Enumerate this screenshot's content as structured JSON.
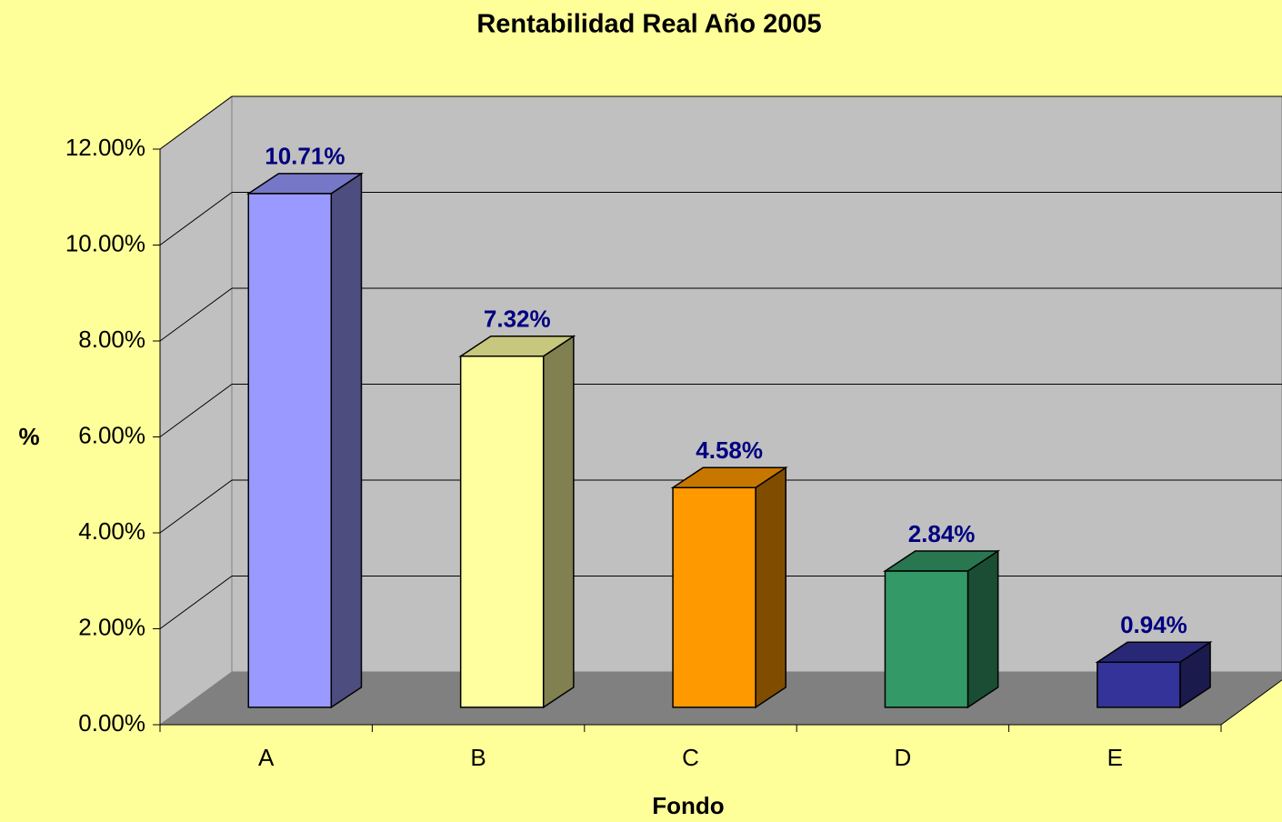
{
  "chart_data": {
    "type": "bar3d",
    "title": "Rentabilidad Real Año 2005",
    "x_label": "Fondo",
    "y_label": "%",
    "categories": [
      "A",
      "B",
      "C",
      "D",
      "E"
    ],
    "values": [
      10.71,
      7.32,
      4.58,
      2.84,
      0.94
    ],
    "value_labels": [
      "10.71%",
      "7.32%",
      "4.58%",
      "2.84%",
      "0.94%"
    ],
    "colors": [
      "#9999ff",
      "#ffffa0",
      "#ff9900",
      "#339966",
      "#333399"
    ],
    "ylim": [
      0,
      12
    ],
    "yticks": [
      {
        "value": 0,
        "label": "0.00%"
      },
      {
        "value": 2,
        "label": "2.00%"
      },
      {
        "value": 4,
        "label": "4.00%"
      },
      {
        "value": 6,
        "label": "6.00%"
      },
      {
        "value": 8,
        "label": "8.00%"
      },
      {
        "value": 10,
        "label": "10.00%"
      },
      {
        "value": 12,
        "label": "12.00%"
      }
    ],
    "grid": true
  }
}
